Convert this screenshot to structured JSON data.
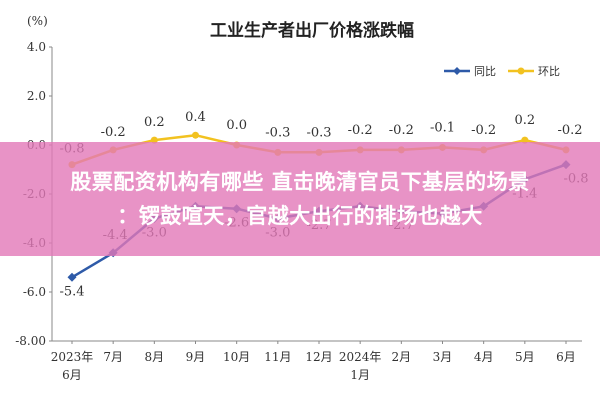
{
  "chart_data": {
    "type": "line",
    "title": "工业生产者出厂价格涨跌幅",
    "ylabel": "(%)",
    "ylim": [
      -8.0,
      4.0
    ],
    "yticks": [
      "4.0",
      "2.0",
      "0.0",
      "-2.0",
      "-4.0",
      "-6.0",
      "-8.00"
    ],
    "ytick_values": [
      4,
      2,
      0,
      -2,
      -4,
      -6,
      -8
    ],
    "categories": [
      [
        "2023年",
        "6月"
      ],
      [
        "7月"
      ],
      [
        "8月"
      ],
      [
        "9月"
      ],
      [
        "10月"
      ],
      [
        "11月"
      ],
      [
        "12月"
      ],
      [
        "2024年",
        "1月"
      ],
      [
        "2月"
      ],
      [
        "3月"
      ],
      [
        "4月"
      ],
      [
        "5月"
      ],
      [
        "6月"
      ]
    ],
    "series": [
      {
        "name": "同比",
        "color": "#2e5aa8",
        "values": [
          -5.4,
          -4.4,
          -3.0,
          -2.5,
          -2.6,
          -3.0,
          -2.7,
          -2.5,
          -2.7,
          -2.8,
          -2.5,
          -1.4,
          -0.8
        ],
        "labels": [
          "-5.4",
          "-4.4",
          "-3.0",
          "",
          "-2.6",
          "-3.0",
          "-2.7",
          "",
          "-2.7",
          "",
          "",
          "-1.4",
          "-0.8"
        ]
      },
      {
        "name": "环比",
        "color": "#f2c220",
        "values": [
          -0.8,
          -0.2,
          0.2,
          0.4,
          0.0,
          -0.3,
          -0.3,
          -0.2,
          -0.2,
          -0.1,
          -0.2,
          0.2,
          -0.2
        ],
        "labels": [
          "-0.8",
          "-0.2",
          "0.2",
          "0.4",
          "0.0",
          "-0.3",
          "-0.3",
          "-0.2",
          "-0.2",
          "-0.1",
          "-0.2",
          "0.2",
          "-0.2"
        ]
      }
    ],
    "legend": "top-right",
    "grid": false
  },
  "overlay": {
    "line1": "股票配资机构有哪些 直击晚清官员下基层的场景",
    "line2": "：锣鼓喧天，官越大出行的排场也越大",
    "color": "#e278b8"
  }
}
